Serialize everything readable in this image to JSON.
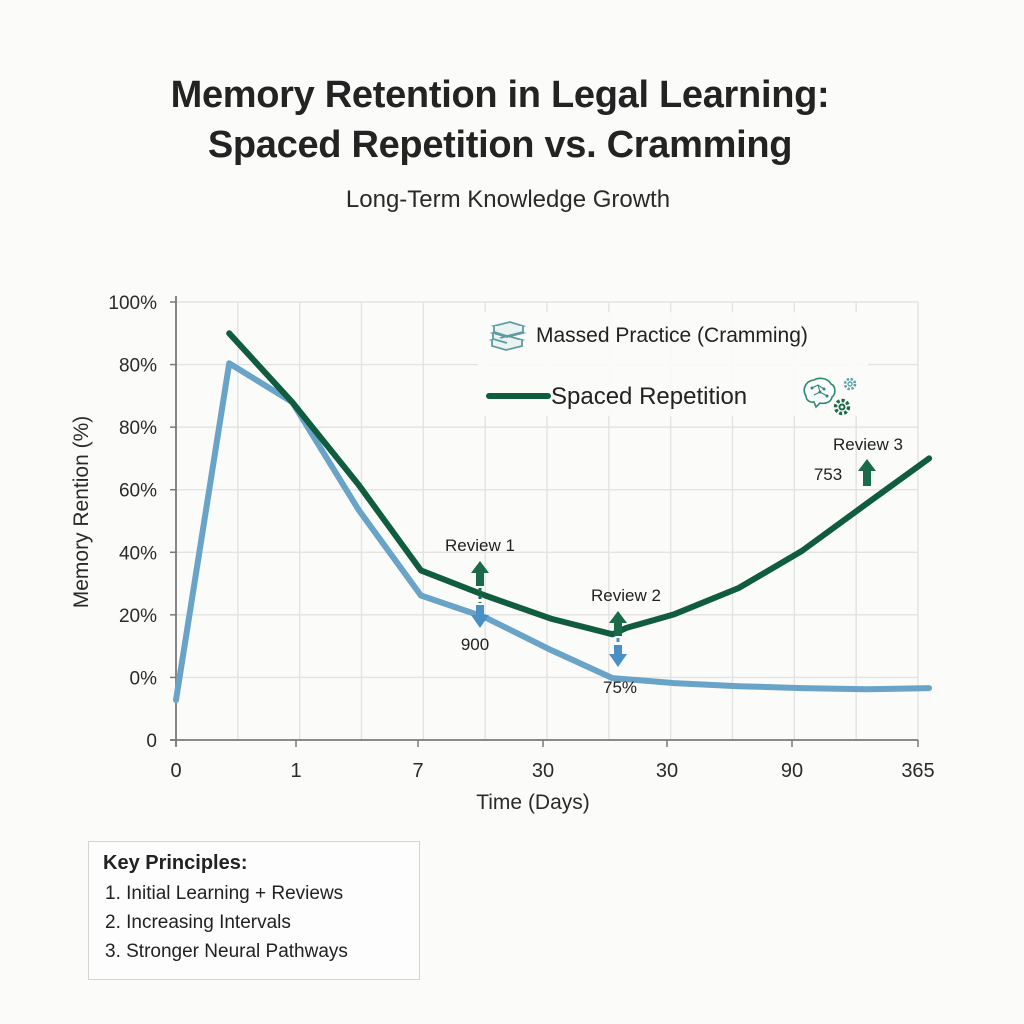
{
  "header": {
    "title_line1": "Memory Retention in Legal Learning:",
    "title_line2": "Spaced Repetition vs. Cramming",
    "subtitle": "Long-Term Knowledge Growth"
  },
  "colors": {
    "spaced": "#0f5c3f",
    "cramming": "#6aa3c8",
    "grid": "#e3e3e3",
    "axis": "#7a7a7a",
    "arrow_green": "#1a6b4a",
    "arrow_blue": "#4a90c4"
  },
  "legend": {
    "cramming_label": "Massed Practice (Cramming)",
    "cramming_icon": "books-stack-icon",
    "spaced_label": "Spaced Repetition",
    "spaced_icon": "brain-gears-icon"
  },
  "annotations": {
    "review1": "Review 1",
    "review1_value": "900",
    "review2": "Review 2",
    "review2_value": "75%",
    "review3": "Review 3",
    "review3_value": "753"
  },
  "principles": {
    "heading": "Key Principles:",
    "items": [
      "1. Initial Learning + Reviews",
      "2. Increasing Intervals",
      "3. Stronger Neural Pathways"
    ]
  },
  "chart_data": {
    "type": "line",
    "title": "Memory Retention in Legal Learning: Spaced Repetition vs. Cramming",
    "subtitle": "Long-Term Knowledge Growth",
    "xlabel": "Time (Days)",
    "ylabel": "Memory Rention (%)",
    "x_tick_labels": [
      "0",
      "1",
      "7",
      "30",
      "30",
      "90",
      "365"
    ],
    "y_tick_labels": [
      "0",
      "0%",
      "20%",
      "40%",
      "60%",
      "80%",
      "80%",
      "100%"
    ],
    "grid": true,
    "legend_position": "upper right",
    "x_grid_positions": [
      0,
      0.5,
      1,
      1.5,
      2,
      2.5,
      3,
      3.5,
      4,
      4.5,
      5,
      5.5,
      6
    ],
    "series": [
      {
        "name": "Spaced Repetition",
        "color": "#0f5c3f",
        "x": [
          0.43,
          0.94,
          1.48,
          1.98,
          2.5,
          3.03,
          3.53,
          3.64,
          4.03,
          4.55,
          5.06,
          5.58,
          6.09
        ],
        "y_tick_units": [
          6.5,
          5.4,
          4.07,
          2.71,
          2.31,
          1.94,
          1.69,
          1.79,
          2.01,
          2.43,
          3.02,
          3.77,
          4.5
        ]
      },
      {
        "name": "Massed Practice (Cramming)",
        "color": "#6aa3c8",
        "x": [
          0.0,
          0.43,
          0.94,
          1.48,
          1.98,
          2.5,
          3.03,
          3.53,
          4.03,
          4.55,
          5.06,
          5.58,
          6.09
        ],
        "y_tick_units": [
          0.64,
          6.02,
          5.4,
          3.67,
          2.31,
          1.96,
          1.44,
          0.99,
          0.91,
          0.86,
          0.83,
          0.81,
          0.83
        ]
      }
    ],
    "annotations": [
      {
        "text": "Review 1",
        "value_label": "900",
        "x": 2.5
      },
      {
        "text": "Review 2",
        "value_label": "75%",
        "x": 3.63
      },
      {
        "text": "Review 3",
        "value_label": "753",
        "x": 5.68
      }
    ],
    "note": "y_tick_units: 0 = bottom tick ('0'), 7 = top tick ('100%'); x in major-tick index units (0..6)"
  },
  "axes": {
    "xlabel": "Time (Days)",
    "ylabel": "Memory Rention (%)"
  }
}
